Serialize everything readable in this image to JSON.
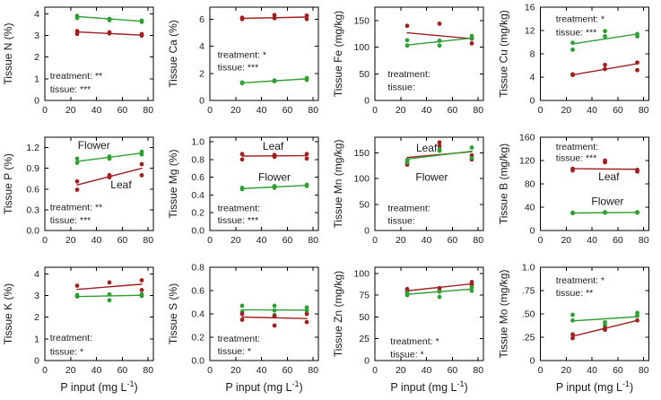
{
  "figure": {
    "xlabel": {
      "pre": "P input (mg L",
      "sup": "-1",
      "post": ")"
    },
    "colors": {
      "flower": "#2f9e33",
      "leaf": "#a01f1f",
      "axis": "#000000",
      "text": "#1a1a1a"
    },
    "x": {
      "lim": [
        0,
        84
      ],
      "ticks": [
        0,
        20,
        40,
        60,
        80
      ],
      "tick_labels": [
        "0",
        "20",
        "40",
        "60",
        "80"
      ]
    }
  },
  "chart_data": [
    {
      "id": "tissue-n",
      "type": "scatter",
      "ylabel": "Tissue N (%)",
      "ylim": [
        0,
        4.3
      ],
      "ytick_values": [
        0,
        1,
        2,
        3,
        4
      ],
      "ytick_labels": [
        "0",
        "1",
        "2",
        "3",
        "4"
      ],
      "series": [
        {
          "name": "Flower",
          "color": "flower",
          "x": [
            25,
            25,
            50,
            50,
            75,
            75
          ],
          "y": [
            3.8,
            3.9,
            3.7,
            3.76,
            3.62,
            3.68
          ],
          "trend_y": [
            3.87,
            3.65
          ]
        },
        {
          "name": "Leaf",
          "color": "leaf",
          "x": [
            25,
            25,
            50,
            50,
            75,
            75
          ],
          "y": [
            3.07,
            3.2,
            3.09,
            3.14,
            2.99,
            3.06
          ],
          "trend_y": [
            3.16,
            3.01
          ]
        }
      ],
      "annotations": [
        {
          "text": "treatment: **",
          "x": 4,
          "y": 1.14
        },
        {
          "text": "tissue: ***",
          "x": 4,
          "y": 0.52
        }
      ],
      "series_labels": []
    },
    {
      "id": "tissue-ca",
      "type": "scatter",
      "ylabel": "Tissue Ca (%)",
      "ylim": [
        0,
        6.9
      ],
      "ytick_values": [
        0,
        2,
        4,
        6
      ],
      "ytick_labels": [
        "0",
        "2",
        "4",
        "6"
      ],
      "series": [
        {
          "name": "Leaf",
          "color": "leaf",
          "x": [
            25,
            25,
            50,
            50,
            75,
            75
          ],
          "y": [
            6.02,
            6.12,
            6.08,
            6.32,
            6.02,
            6.28
          ],
          "trend_y": [
            6.07,
            6.17
          ]
        },
        {
          "name": "Flower",
          "color": "flower",
          "x": [
            25,
            25,
            50,
            50,
            75,
            75
          ],
          "y": [
            1.27,
            1.33,
            1.42,
            1.48,
            1.52,
            1.65
          ],
          "trend_y": [
            1.3,
            1.6
          ]
        }
      ],
      "annotations": [
        {
          "text": "treatment: *",
          "x": 6,
          "y": 3.4
        },
        {
          "text": "tissue: ***",
          "x": 6,
          "y": 2.45
        }
      ],
      "series_labels": []
    },
    {
      "id": "tissue-fe",
      "type": "scatter",
      "ylabel": "Tissue Fe (mg/kg)",
      "ylim": [
        0,
        175
      ],
      "ytick_values": [
        0,
        50,
        100,
        150
      ],
      "ytick_labels": [
        "0",
        "50",
        "100",
        "150"
      ],
      "series": [
        {
          "name": "Leaf",
          "color": "leaf",
          "x": [
            25,
            50,
            75,
            75
          ],
          "y": [
            140,
            144,
            107,
            116
          ],
          "trend_y": [
            127,
            116
          ]
        },
        {
          "name": "Flower",
          "color": "flower",
          "x": [
            25,
            25,
            50,
            50,
            75,
            75
          ],
          "y": [
            103,
            113,
            103,
            112,
            117,
            121
          ],
          "trend_y": [
            104,
            117
          ]
        }
      ],
      "annotations": [
        {
          "text": "treatment:",
          "x": 10,
          "y": 50
        },
        {
          "text": "tissue:",
          "x": 10,
          "y": 25
        }
      ],
      "series_labels": []
    },
    {
      "id": "tissue-cu",
      "type": "scatter",
      "ylabel": "Tissue Cu (mg/kg)",
      "ylim": [
        0,
        16
      ],
      "ytick_values": [
        0,
        4,
        8,
        12,
        16
      ],
      "ytick_labels": [
        "0",
        "4",
        "8",
        "12",
        "16"
      ],
      "series": [
        {
          "name": "Flower",
          "color": "flower",
          "x": [
            25,
            25,
            50,
            50,
            75,
            75
          ],
          "y": [
            8.7,
            9.9,
            11.0,
            11.9,
            11.0,
            11.4
          ],
          "trend_y": [
            9.7,
            11.4
          ]
        },
        {
          "name": "Leaf",
          "color": "leaf",
          "x": [
            25,
            25,
            50,
            50,
            75,
            75
          ],
          "y": [
            4.35,
            4.5,
            5.4,
            6.1,
            5.2,
            6.5
          ],
          "trend_y": [
            4.4,
            6.3
          ]
        }
      ],
      "annotations": [
        {
          "text": "treatment: *",
          "x": 12,
          "y": 14.0
        },
        {
          "text": "tissue: ***",
          "x": 12,
          "y": 11.7
        }
      ],
      "series_labels": []
    },
    {
      "id": "tissue-p",
      "type": "scatter",
      "ylabel": "Tissue P (%)",
      "ylim": [
        0,
        1.35
      ],
      "ytick_values": [
        0,
        0.3,
        0.6,
        0.9,
        1.2
      ],
      "ytick_labels": [
        "0.0",
        "0.3",
        "0.6",
        "0.9",
        "1.2"
      ],
      "series": [
        {
          "name": "Flower",
          "color": "flower",
          "x": [
            25,
            25,
            50,
            50,
            75,
            75
          ],
          "y": [
            0.98,
            1.04,
            1.04,
            1.07,
            1.1,
            1.14
          ],
          "trend_y": [
            1.0,
            1.12
          ]
        },
        {
          "name": "Leaf",
          "color": "leaf",
          "x": [
            25,
            25,
            50,
            50,
            75,
            75
          ],
          "y": [
            0.59,
            0.71,
            0.77,
            0.8,
            0.8,
            0.96
          ],
          "trend_y": [
            0.66,
            0.9
          ]
        }
      ],
      "annotations": [
        {
          "text": "treatment: **",
          "x": 4,
          "y": 0.34
        },
        {
          "text": "tissue: ***",
          "x": 4,
          "y": 0.15
        }
      ],
      "series_labels": [
        {
          "text": "Flower",
          "x": 38,
          "y": 1.23,
          "color": "flower"
        },
        {
          "text": "Leaf",
          "x": 59,
          "y": 0.66,
          "color": "leaf"
        }
      ]
    },
    {
      "id": "tissue-mg",
      "type": "scatter",
      "ylabel": "Tissue Mg (%)",
      "ylim": [
        0,
        1.05
      ],
      "ytick_values": [
        0,
        0.2,
        0.4,
        0.6,
        0.8,
        1.0
      ],
      "ytick_labels": [
        "0.0",
        "0.2",
        "0.4",
        "0.6",
        "0.8",
        "1.0"
      ],
      "series": [
        {
          "name": "Leaf",
          "color": "leaf",
          "x": [
            25,
            25,
            50,
            50,
            75,
            75
          ],
          "y": [
            0.8,
            0.86,
            0.83,
            0.85,
            0.81,
            0.86
          ],
          "trend_y": [
            0.838,
            0.842
          ]
        },
        {
          "name": "Flower",
          "color": "flower",
          "x": [
            25,
            25,
            50,
            50,
            75,
            75
          ],
          "y": [
            0.465,
            0.48,
            0.48,
            0.5,
            0.5,
            0.515
          ],
          "trend_y": [
            0.472,
            0.508
          ]
        }
      ],
      "annotations": [
        {
          "text": "treatment:",
          "x": 6,
          "y": 0.25
        },
        {
          "text": "tissue: ***",
          "x": 6,
          "y": 0.115
        }
      ],
      "series_labels": [
        {
          "text": "Leaf",
          "x": 49,
          "y": 0.95,
          "color": "leaf"
        },
        {
          "text": "Flower",
          "x": 50,
          "y": 0.6,
          "color": "flower"
        }
      ]
    },
    {
      "id": "tissue-mn",
      "type": "scatter",
      "ylabel": "Tissue Mn (mg/kg)",
      "ylim": [
        0,
        180
      ],
      "ytick_values": [
        0,
        50,
        100,
        150
      ],
      "ytick_labels": [
        "0",
        "50",
        "100",
        "150"
      ],
      "series": [
        {
          "name": "Leaf",
          "color": "leaf",
          "x": [
            25,
            25,
            50,
            50,
            75,
            75
          ],
          "y": [
            127,
            132,
            163,
            170,
            137,
            145
          ],
          "trend_y": [
            141,
            152
          ]
        },
        {
          "name": "Flower",
          "color": "flower",
          "x": [
            25,
            25,
            50,
            50,
            75,
            75
          ],
          "y": [
            131,
            136,
            154,
            157,
            140,
            160
          ],
          "trend_y": [
            138,
            153
          ]
        }
      ],
      "annotations": [
        {
          "text": "treatment:",
          "x": 10,
          "y": 43
        },
        {
          "text": "tissue:",
          "x": 10,
          "y": 19
        }
      ],
      "series_labels": [
        {
          "text": "Leaf",
          "x": 40,
          "y": 159,
          "color": "leaf"
        },
        {
          "text": "Flower",
          "x": 44,
          "y": 103,
          "color": "flower"
        }
      ]
    },
    {
      "id": "tissue-b",
      "type": "scatter",
      "ylabel": "Tissue B (mg/kg)",
      "ylim": [
        0,
        160
      ],
      "ytick_values": [
        0,
        40,
        80,
        120,
        160
      ],
      "ytick_labels": [
        "0",
        "40",
        "80",
        "120",
        "160"
      ],
      "series": [
        {
          "name": "Leaf",
          "color": "leaf",
          "x": [
            25,
            25,
            50,
            50,
            75,
            75
          ],
          "y": [
            103,
            106,
            117,
            120,
            101,
            104
          ],
          "trend_y": [
            106,
            105
          ]
        },
        {
          "name": "Flower",
          "color": "flower",
          "x": [
            25,
            25,
            50,
            50,
            75,
            75
          ],
          "y": [
            29.5,
            30.5,
            30.5,
            31.5,
            30.5,
            31.5
          ],
          "trend_y": [
            30,
            31
          ]
        }
      ],
      "annotations": [
        {
          "text": "treatment:",
          "x": 12,
          "y": 144
        },
        {
          "text": "tissue: ***",
          "x": 12,
          "y": 125
        }
      ],
      "series_labels": [
        {
          "text": "Leaf",
          "x": 53,
          "y": 92,
          "color": "leaf"
        },
        {
          "text": "Flower",
          "x": 52,
          "y": 50,
          "color": "flower"
        }
      ]
    },
    {
      "id": "tissue-k",
      "type": "scatter",
      "ylabel": "Tissue K (%)",
      "ylim": [
        0,
        4.3
      ],
      "ytick_values": [
        0,
        1,
        2,
        3,
        4
      ],
      "ytick_labels": [
        "0",
        "1",
        "2",
        "3",
        "4"
      ],
      "series": [
        {
          "name": "Leaf",
          "color": "leaf",
          "x": [
            25,
            50,
            75,
            75
          ],
          "y": [
            3.45,
            3.6,
            3.25,
            3.7
          ],
          "trend_y": [
            3.28,
            3.52
          ]
        },
        {
          "name": "Flower",
          "color": "flower",
          "x": [
            25,
            25,
            50,
            50,
            75,
            75
          ],
          "y": [
            2.95,
            3.02,
            2.78,
            3.05,
            2.98,
            3.05
          ],
          "trend_y": [
            2.95,
            3.01
          ]
        }
      ],
      "annotations": [
        {
          "text": "treatment:",
          "x": 4,
          "y": 1.05
        },
        {
          "text": "tissue: *",
          "x": 4,
          "y": 0.42
        }
      ],
      "series_labels": []
    },
    {
      "id": "tissue-s",
      "type": "scatter",
      "ylabel": "Tissue S (%)",
      "ylim": [
        0,
        0.8
      ],
      "ytick_values": [
        0,
        0.2,
        0.4,
        0.6,
        0.8
      ],
      "ytick_labels": [
        "0.0",
        "0.2",
        "0.4",
        "0.6",
        "0.8"
      ],
      "series": [
        {
          "name": "Flower",
          "color": "flower",
          "x": [
            25,
            25,
            50,
            50,
            50,
            75,
            75
          ],
          "y": [
            0.42,
            0.47,
            0.39,
            0.43,
            0.47,
            0.43,
            0.455
          ],
          "trend_y": [
            0.435,
            0.432
          ]
        },
        {
          "name": "Leaf",
          "color": "leaf",
          "x": [
            25,
            25,
            50,
            50,
            75,
            75
          ],
          "y": [
            0.35,
            0.4,
            0.3,
            0.38,
            0.33,
            0.4
          ],
          "trend_y": [
            0.373,
            0.36
          ]
        }
      ],
      "annotations": [
        {
          "text": "treatment:",
          "x": 6,
          "y": 0.19
        },
        {
          "text": "tissue: *",
          "x": 6,
          "y": 0.08
        }
      ],
      "series_labels": []
    },
    {
      "id": "tissue-zn",
      "type": "scatter",
      "ylabel": "Tissue Zn (mg/kg)",
      "ylim": [
        0,
        107
      ],
      "ytick_values": [
        0,
        25,
        50,
        75,
        100
      ],
      "ytick_labels": [
        "0",
        "25",
        "50",
        "75",
        "100"
      ],
      "series": [
        {
          "name": "Leaf",
          "color": "leaf",
          "x": [
            25,
            25,
            50,
            50,
            75,
            75
          ],
          "y": [
            80,
            82,
            80,
            83,
            87,
            90
          ],
          "trend_y": [
            80,
            88
          ]
        },
        {
          "name": "Flower",
          "color": "flower",
          "x": [
            25,
            25,
            50,
            50,
            75,
            75
          ],
          "y": [
            75,
            78,
            73,
            79,
            80,
            84
          ],
          "trend_y": [
            76,
            82
          ]
        }
      ],
      "annotations": [
        {
          "text": "treatment: *",
          "x": 12,
          "y": 22
        },
        {
          "text": "tissue: *",
          "x": 12,
          "y": 7
        }
      ],
      "series_labels": []
    },
    {
      "id": "tissue-mo",
      "type": "scatter",
      "ylabel": "Tissue Mo (mg/kg)",
      "ylim": [
        0,
        1.0
      ],
      "ytick_values": [
        0,
        0.25,
        0.5,
        0.75,
        1.0
      ],
      "ytick_labels": [
        "0",
        ".25",
        ".50",
        ".75",
        "1.0"
      ],
      "series": [
        {
          "name": "Flower",
          "color": "flower",
          "x": [
            25,
            25,
            50,
            50,
            75,
            75
          ],
          "y": [
            0.43,
            0.49,
            0.38,
            0.41,
            0.48,
            0.51
          ],
          "trend_y": [
            0.425,
            0.47
          ]
        },
        {
          "name": "Leaf",
          "color": "leaf",
          "x": [
            25,
            25,
            50,
            50,
            75
          ],
          "y": [
            0.24,
            0.28,
            0.33,
            0.35,
            0.43
          ],
          "trend_y": [
            0.26,
            0.43
          ]
        }
      ],
      "annotations": [
        {
          "text": "treatment: *",
          "x": 12,
          "y": 0.86
        },
        {
          "text": "tissue: **",
          "x": 12,
          "y": 0.725
        }
      ],
      "series_labels": []
    }
  ]
}
